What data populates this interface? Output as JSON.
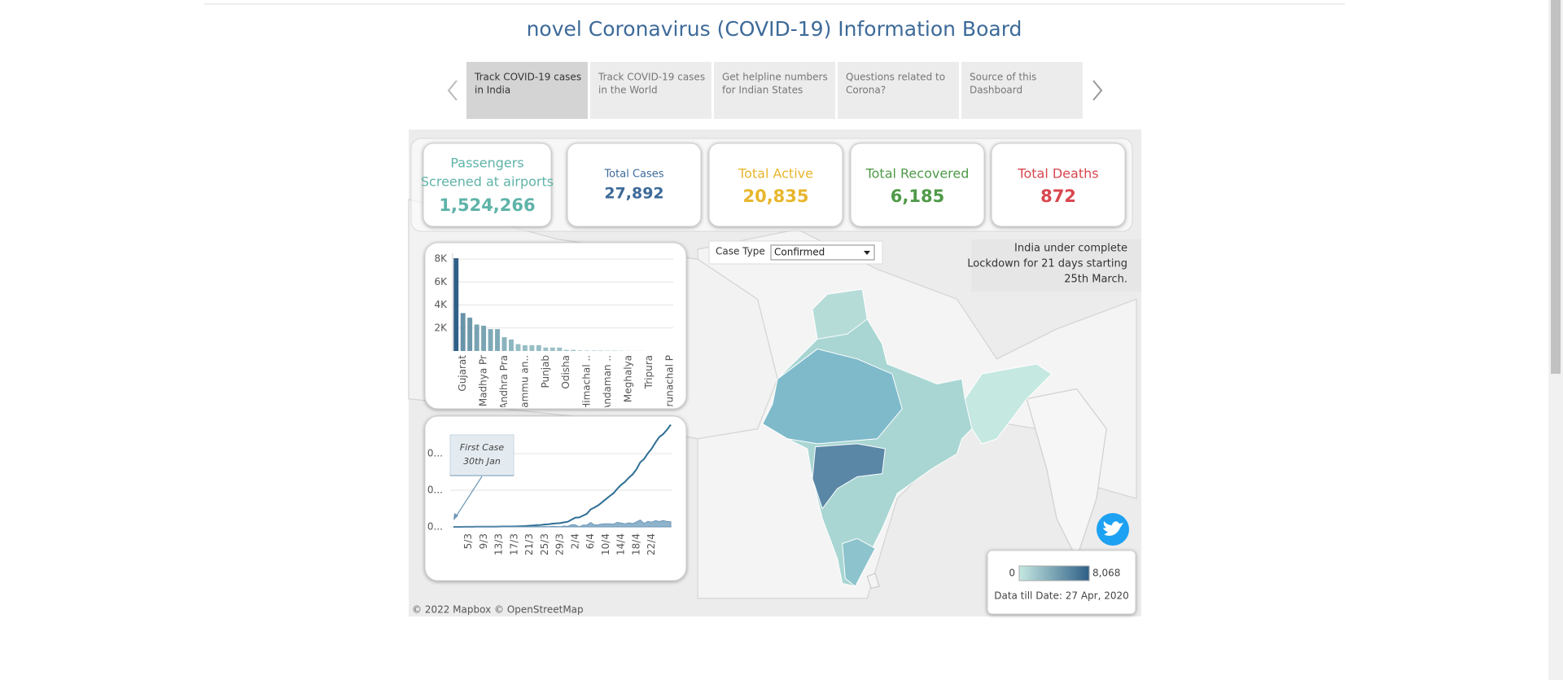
{
  "header": {
    "title": "novel Coronavirus (COVID-19) Information Board"
  },
  "tabs": [
    {
      "lines": [
        "Track COVID-19 cases",
        "in India"
      ],
      "active": true
    },
    {
      "lines": [
        "Track COVID-19 cases",
        "in the World"
      ],
      "active": false
    },
    {
      "lines": [
        "Get helpline numbers",
        "for Indian States"
      ],
      "active": false
    },
    {
      "lines": [
        "Questions related to",
        "Corona?"
      ],
      "active": false
    },
    {
      "lines": [
        "Source of this",
        "Dashboard"
      ],
      "active": false
    }
  ],
  "kpis": [
    {
      "label": [
        "Passengers",
        "Screened at airports"
      ],
      "value": "1,524,266",
      "color": "#5fb3a8"
    },
    {
      "label": [
        "Total Cases"
      ],
      "value": "27,892",
      "color": "#3d6a99"
    },
    {
      "label": [
        "Total Active"
      ],
      "value": "20,835",
      "color": "#e8b62c"
    },
    {
      "label": [
        "Total Recovered"
      ],
      "value": "6,185",
      "color": "#4f9a48"
    },
    {
      "label": [
        "Total Deaths"
      ],
      "value": "872",
      "color": "#d9464d"
    }
  ],
  "filter": {
    "label": "Case Type",
    "value": "Confirmed"
  },
  "note": {
    "lines": [
      "India under complete",
      "Lockdown for 21 days starting",
      "25th March."
    ]
  },
  "map_legend": {
    "min_label": "0",
    "max_label": "8,068",
    "date_text": "Data till Date: 27 Apr, 2020",
    "colors": [
      "#c5e8e1",
      "#2e5f87"
    ]
  },
  "credit": "© 2022 Mapbox  © OpenStreetMap",
  "chart_data": [
    {
      "type": "bar",
      "categories": [
        null,
        "Gujarat",
        null,
        null,
        "Madhya Pr",
        null,
        null,
        "Andhra Pra",
        null,
        null,
        "Jammu an..",
        null,
        null,
        "Punjab",
        null,
        null,
        "Odisha",
        null,
        null,
        "Himachal ..",
        null,
        null,
        "Andaman ..",
        null,
        null,
        "Meghalya",
        null,
        null,
        "Tripura",
        null,
        null,
        "Arunachal P"
      ],
      "values": [
        8068,
        3300,
        2900,
        2300,
        2200,
        1900,
        1900,
        1200,
        1000,
        600,
        500,
        500,
        500,
        300,
        300,
        300,
        100,
        100,
        50,
        40,
        40,
        40,
        30,
        30,
        20,
        10,
        10,
        10,
        2,
        2,
        1,
        1
      ],
      "colors": [
        "#c5e8e1",
        "#2e5f87"
      ],
      "ylim": [
        0,
        8500
      ],
      "yticks": [
        {
          "value": 2000,
          "label": "2K"
        },
        {
          "value": 4000,
          "label": "4K"
        },
        {
          "value": 6000,
          "label": "6K"
        },
        {
          "value": 8000,
          "label": "8K"
        }
      ],
      "grid": true
    },
    {
      "type": "line",
      "categories": [
        null,
        null,
        null,
        null,
        "5/3",
        null,
        null,
        null,
        "9/3",
        null,
        null,
        null,
        "13/3",
        null,
        null,
        null,
        "17/3",
        null,
        null,
        null,
        "21/3",
        null,
        null,
        null,
        "25/3",
        null,
        null,
        null,
        "29/3",
        null,
        null,
        null,
        "2/4",
        null,
        null,
        null,
        "6/4",
        null,
        null,
        null,
        "10/4",
        null,
        null,
        null,
        "14/4",
        null,
        null,
        null,
        "18/4",
        null,
        null,
        null,
        "22/4",
        null,
        null,
        null,
        null,
        null
      ],
      "series": [
        {
          "type": "line",
          "color": "#2e6f95",
          "values": [
            3,
            5,
            6,
            28,
            30,
            31,
            34,
            39,
            43,
            56,
            62,
            73,
            82,
            102,
            113,
            119,
            142,
            156,
            194,
            244,
            330,
            396,
            499,
            536,
            657,
            727,
            887,
            987,
            1024,
            1251,
            1397,
            1998,
            2543,
            2567,
            3082,
            3588,
            4778,
            5311,
            5916,
            6725,
            7598,
            8446,
            9205,
            10453,
            11487,
            12322,
            13430,
            14352,
            15722,
            17615,
            18539,
            20080,
            21370,
            23077,
            24530,
            25300,
            26496,
            27892
          ]
        },
        {
          "type": "area",
          "color": "#8fb3cc",
          "values": [
            2,
            2,
            1,
            22,
            2,
            1,
            3,
            5,
            4,
            13,
            6,
            11,
            9,
            20,
            11,
            6,
            23,
            14,
            38,
            50,
            86,
            66,
            103,
            37,
            121,
            70,
            160,
            100,
            37,
            227,
            146,
            601,
            545,
            24,
            515,
            506,
            1190,
            533,
            605,
            809,
            873,
            848,
            759,
            1248,
            1034,
            835,
            1108,
            922,
            1370,
            1893,
            924,
            1541,
            1290,
            1707,
            1453,
            1753,
            1500,
            1396
          ]
        }
      ],
      "annotation": [
        "First Case",
        "30th Jan"
      ],
      "ylim": [
        0,
        30000
      ],
      "yticks": [
        {
          "value": 0,
          "label": "0..."
        },
        {
          "value": 10000,
          "label": "0..."
        },
        {
          "value": 20000,
          "label": "0..."
        }
      ],
      "grid": true
    }
  ]
}
